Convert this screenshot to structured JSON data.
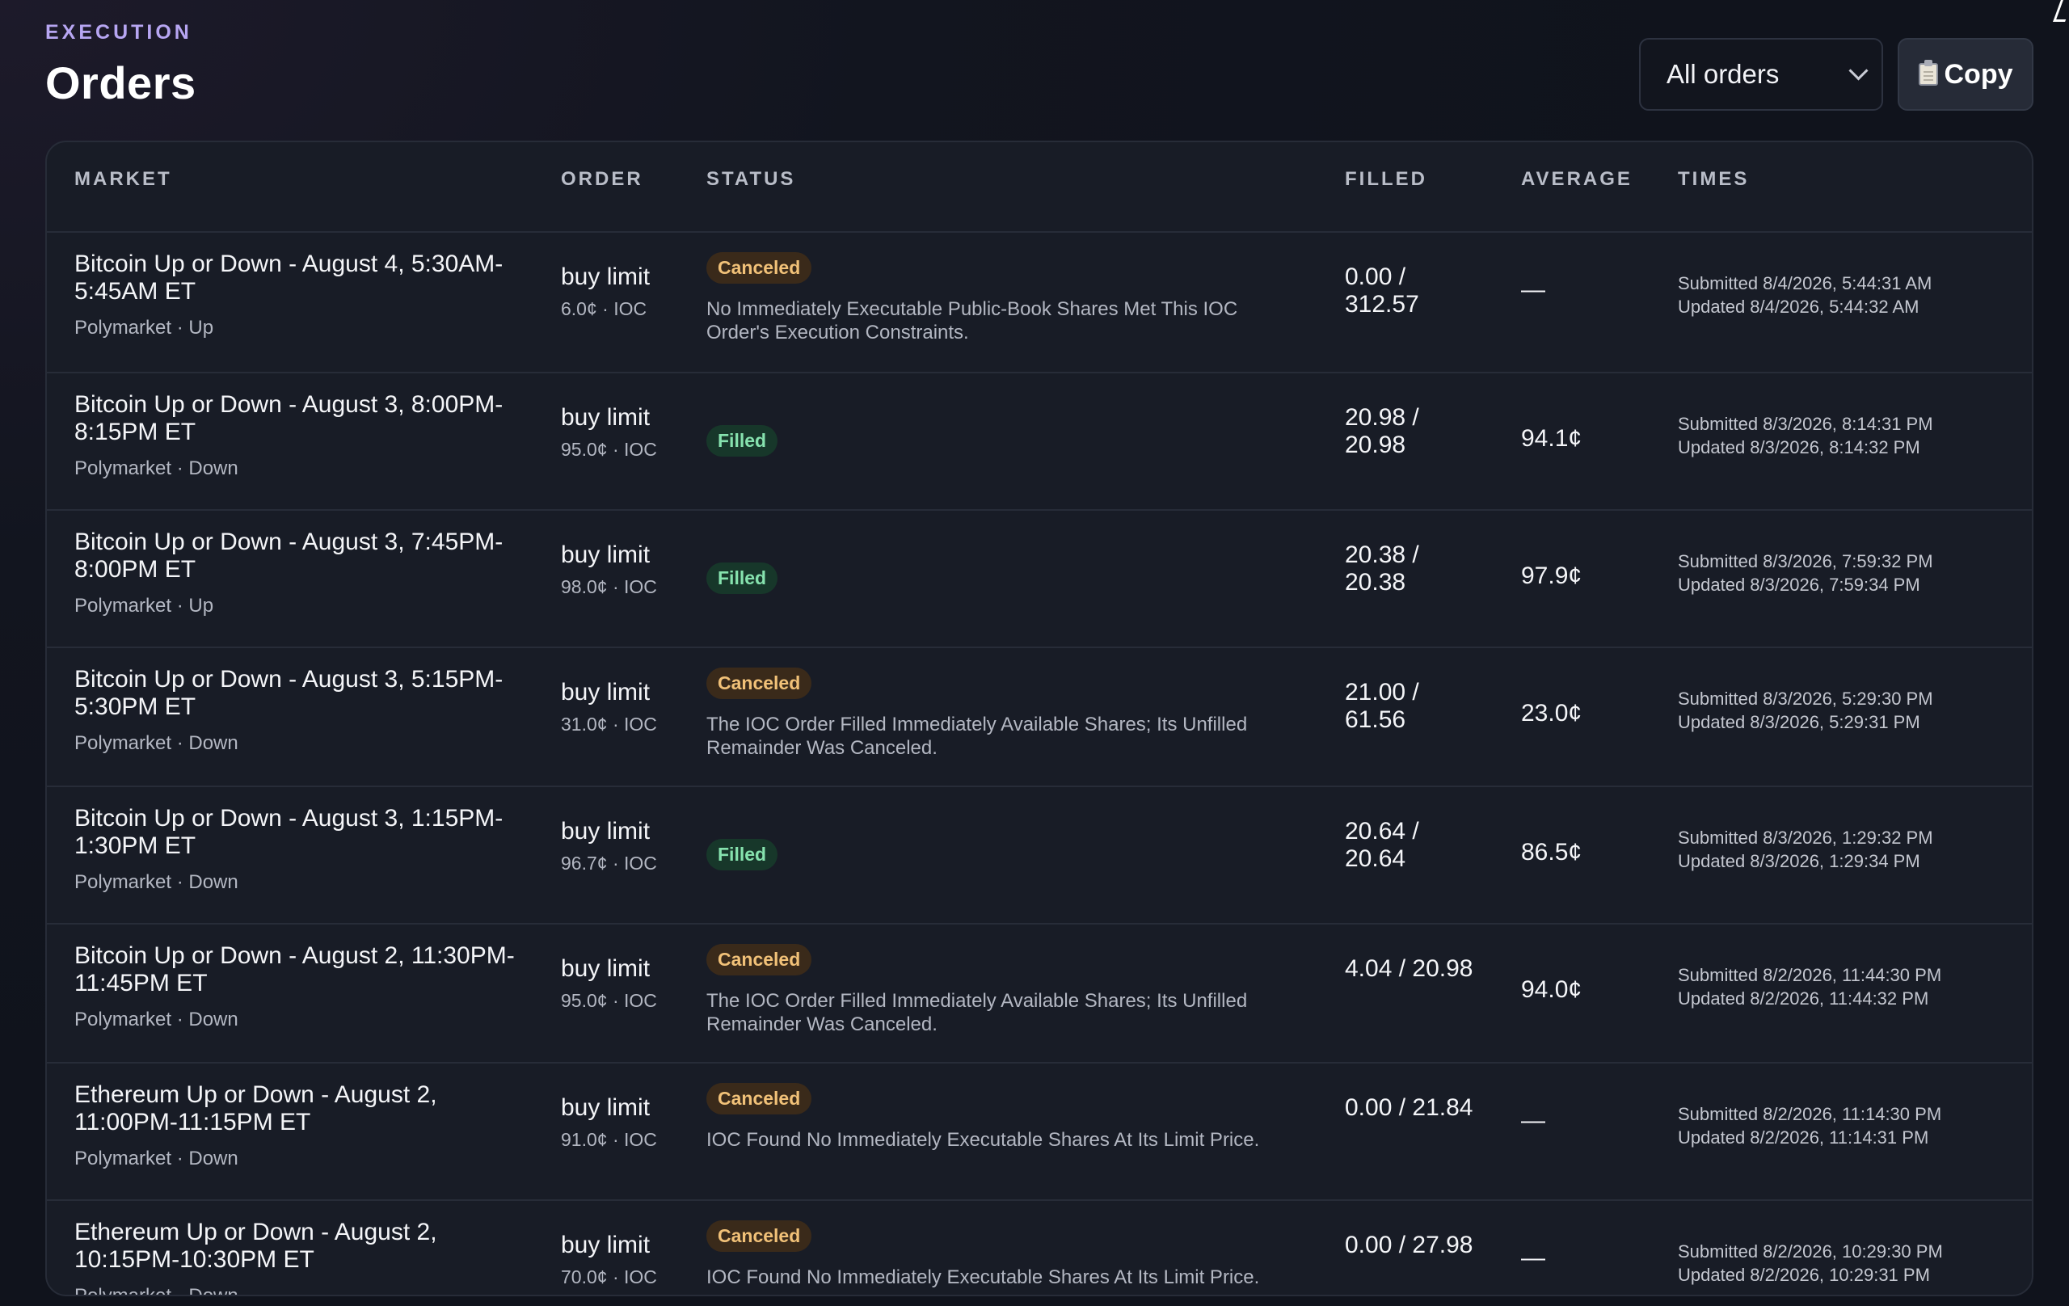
{
  "header": {
    "eyebrow": "EXECUTION",
    "title": "Orders",
    "filter_value": "All orders",
    "copy_label": "Copy"
  },
  "table": {
    "columns": [
      "MARKET",
      "ORDER",
      "STATUS",
      "FILLED",
      "AVERAGE",
      "TIMES"
    ],
    "rows": [
      {
        "market_title": "Bitcoin Up or Down - August 4, 5:30AM-5:45AM ET",
        "market_sub": "Polymarket · Up",
        "order_type": "buy limit",
        "order_detail": "6.0¢ · IOC",
        "status": "Canceled",
        "status_kind": "canceled",
        "status_message": "No Immediately Executable Public-Book Shares Met This IOC Order's Execution Constraints.",
        "filled": "0.00 / 312.57",
        "average": "—",
        "submitted": "Submitted 8/4/2026, 5:44:31 AM",
        "updated": "Updated 8/4/2026, 5:44:32 AM"
      },
      {
        "market_title": "Bitcoin Up or Down - August 3, 8:00PM-8:15PM ET",
        "market_sub": "Polymarket · Down",
        "order_type": "buy limit",
        "order_detail": "95.0¢ · IOC",
        "status": "Filled",
        "status_kind": "filled",
        "status_message": "",
        "filled": "20.98 / 20.98",
        "average": "94.1¢",
        "submitted": "Submitted 8/3/2026, 8:14:31 PM",
        "updated": "Updated 8/3/2026, 8:14:32 PM"
      },
      {
        "market_title": "Bitcoin Up or Down - August 3, 7:45PM-8:00PM ET",
        "market_sub": "Polymarket · Up",
        "order_type": "buy limit",
        "order_detail": "98.0¢ · IOC",
        "status": "Filled",
        "status_kind": "filled",
        "status_message": "",
        "filled": "20.38 / 20.38",
        "average": "97.9¢",
        "submitted": "Submitted 8/3/2026, 7:59:32 PM",
        "updated": "Updated 8/3/2026, 7:59:34 PM"
      },
      {
        "market_title": "Bitcoin Up or Down - August 3, 5:15PM-5:30PM ET",
        "market_sub": "Polymarket · Down",
        "order_type": "buy limit",
        "order_detail": "31.0¢ · IOC",
        "status": "Canceled",
        "status_kind": "canceled",
        "status_message": "The IOC Order Filled Immediately Available Shares; Its Unfilled Remainder Was Canceled.",
        "filled": "21.00 / 61.56",
        "average": "23.0¢",
        "submitted": "Submitted 8/3/2026, 5:29:30 PM",
        "updated": "Updated 8/3/2026, 5:29:31 PM"
      },
      {
        "market_title": "Bitcoin Up or Down - August 3, 1:15PM-1:30PM ET",
        "market_sub": "Polymarket · Down",
        "order_type": "buy limit",
        "order_detail": "96.7¢ · IOC",
        "status": "Filled",
        "status_kind": "filled",
        "status_message": "",
        "filled": "20.64 / 20.64",
        "average": "86.5¢",
        "submitted": "Submitted 8/3/2026, 1:29:32 PM",
        "updated": "Updated 8/3/2026, 1:29:34 PM"
      },
      {
        "market_title": "Bitcoin Up or Down - August 2, 11:30PM-11:45PM ET",
        "market_sub": "Polymarket · Down",
        "order_type": "buy limit",
        "order_detail": "95.0¢ · IOC",
        "status": "Canceled",
        "status_kind": "canceled",
        "status_message": "The IOC Order Filled Immediately Available Shares; Its Unfilled Remainder Was Canceled.",
        "filled": "4.04 / 20.98",
        "average": "94.0¢",
        "submitted": "Submitted 8/2/2026, 11:44:30 PM",
        "updated": "Updated 8/2/2026, 11:44:32 PM"
      },
      {
        "market_title": "Ethereum Up or Down - August 2, 11:00PM-11:15PM ET",
        "market_sub": "Polymarket · Down",
        "order_type": "buy limit",
        "order_detail": "91.0¢ · IOC",
        "status": "Canceled",
        "status_kind": "canceled",
        "status_message": "IOC Found No Immediately Executable Shares At Its Limit Price.",
        "filled": "0.00 / 21.84",
        "average": "—",
        "submitted": "Submitted 8/2/2026, 11:14:30 PM",
        "updated": "Updated 8/2/2026, 11:14:31 PM"
      },
      {
        "market_title": "Ethereum Up or Down - August 2, 10:15PM-10:30PM ET",
        "market_sub": "Polymarket · Down",
        "order_type": "buy limit",
        "order_detail": "70.0¢ · IOC",
        "status": "Canceled",
        "status_kind": "canceled",
        "status_message": "IOC Found No Immediately Executable Shares At Its Limit Price.",
        "filled": "0.00 / 27.98",
        "average": "—",
        "submitted": "Submitted 8/2/2026, 10:29:30 PM",
        "updated": "Updated 8/2/2026, 10:29:31 PM"
      }
    ]
  },
  "colors": {
    "accent": "#b7a6f2",
    "canceled_badge": "#f1c178",
    "filled_badge": "#86e2ae",
    "background": "#10131c",
    "card": "#181c26"
  },
  "icons": {
    "copy": "clipboard-icon",
    "select": "chevron-down-icon"
  }
}
